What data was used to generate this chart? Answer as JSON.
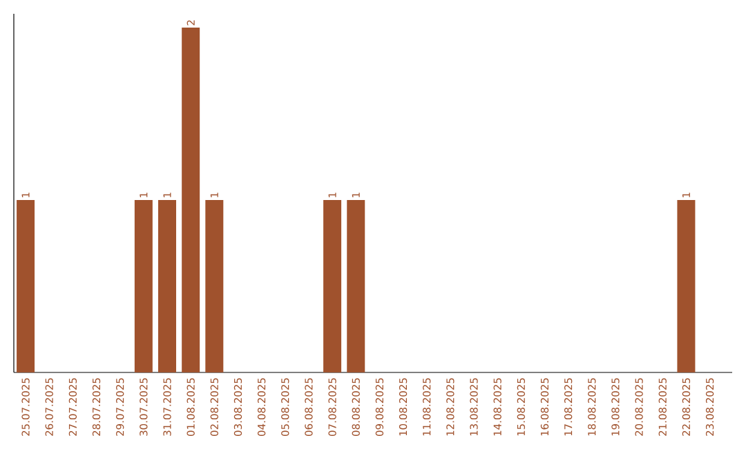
{
  "chart_data": {
    "type": "bar",
    "categories": [
      "25.07.2025",
      "26.07.2025",
      "27.07.2025",
      "28.07.2025",
      "29.07.2025",
      "30.07.2025",
      "31.07.2025",
      "01.08.2025",
      "02.08.2025",
      "03.08.2025",
      "04.08.2025",
      "05.08.2025",
      "06.08.2025",
      "07.08.2025",
      "08.08.2025",
      "09.08.2025",
      "10.08.2025",
      "11.08.2025",
      "12.08.2025",
      "13.08.2025",
      "14.08.2025",
      "15.08.2025",
      "16.08.2025",
      "17.08.2025",
      "18.08.2025",
      "19.08.2025",
      "20.08.2025",
      "21.08.2025",
      "22.08.2025",
      "23.08.2025"
    ],
    "values": [
      1,
      0,
      0,
      0,
      0,
      1,
      1,
      2,
      1,
      0,
      0,
      0,
      0,
      1,
      1,
      0,
      0,
      0,
      0,
      0,
      0,
      0,
      0,
      0,
      0,
      0,
      0,
      0,
      1,
      0
    ],
    "value_labels": [
      "1",
      null,
      null,
      null,
      null,
      "1",
      "1",
      "2",
      "1",
      null,
      null,
      null,
      null,
      "1",
      "1",
      null,
      null,
      null,
      null,
      null,
      null,
      null,
      null,
      null,
      null,
      null,
      null,
      null,
      "1",
      null
    ],
    "color": "#a0522d"
  }
}
